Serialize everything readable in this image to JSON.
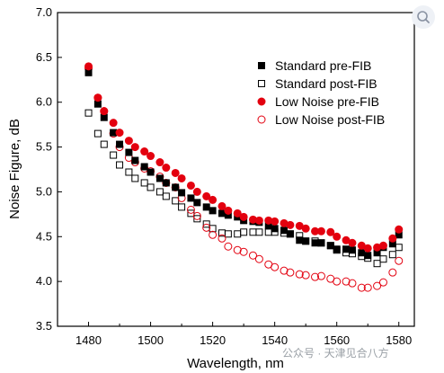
{
  "chart_data": {
    "type": "scatter",
    "xlabel": "Wavelength, nm",
    "ylabel": "Noise Figure, dB",
    "xlim": [
      1470,
      1585
    ],
    "ylim": [
      3.5,
      7.0
    ],
    "xticks": [
      1480,
      1500,
      1520,
      1540,
      1560,
      1580
    ],
    "yticks": [
      3.5,
      4.0,
      4.5,
      5.0,
      5.5,
      6.0,
      6.5,
      7.0
    ],
    "grid": false,
    "legend_position": "top-right",
    "x": [
      1480,
      1483,
      1485,
      1488,
      1490,
      1493,
      1495,
      1498,
      1500,
      1503,
      1505,
      1508,
      1510,
      1513,
      1515,
      1518,
      1520,
      1523,
      1525,
      1528,
      1530,
      1533,
      1535,
      1538,
      1540,
      1543,
      1545,
      1548,
      1550,
      1553,
      1555,
      1558,
      1560,
      1563,
      1565,
      1568,
      1570,
      1573,
      1575,
      1578,
      1580
    ],
    "series": [
      {
        "name": "Standard pre-FIB",
        "marker": "filled-square",
        "color": "#000000",
        "values": [
          6.33,
          5.98,
          5.83,
          5.66,
          5.53,
          5.44,
          5.35,
          5.28,
          5.22,
          5.15,
          5.1,
          5.05,
          4.99,
          4.93,
          4.88,
          4.83,
          4.79,
          4.76,
          4.74,
          4.72,
          4.68,
          4.67,
          4.66,
          4.62,
          4.59,
          4.57,
          4.53,
          4.46,
          4.45,
          4.43,
          4.43,
          4.4,
          4.36,
          4.36,
          4.35,
          4.32,
          4.29,
          4.32,
          4.38,
          4.42,
          4.52
        ]
      },
      {
        "name": "Standard post-FIB",
        "marker": "open-square",
        "color": "#000000",
        "values": [
          5.88,
          5.65,
          5.53,
          5.41,
          5.3,
          5.22,
          5.15,
          5.1,
          5.05,
          5.0,
          4.95,
          4.9,
          4.83,
          4.76,
          4.7,
          4.64,
          4.59,
          4.54,
          4.53,
          4.53,
          4.55,
          4.55,
          4.55,
          4.55,
          4.55,
          4.54,
          4.53,
          4.51,
          4.45,
          4.45,
          4.43,
          4.4,
          4.35,
          4.32,
          4.31,
          4.28,
          4.26,
          4.2,
          4.25,
          4.3,
          4.38
        ]
      },
      {
        "name": "Low Noise pre-FIB",
        "marker": "filled-circle",
        "color": "#e3000f",
        "values": [
          6.4,
          6.05,
          5.9,
          5.77,
          5.66,
          5.57,
          5.5,
          5.45,
          5.4,
          5.33,
          5.27,
          5.21,
          5.15,
          5.07,
          5.0,
          4.95,
          4.91,
          4.84,
          4.79,
          4.76,
          4.72,
          4.69,
          4.68,
          4.68,
          4.67,
          4.65,
          4.63,
          4.62,
          4.59,
          4.56,
          4.56,
          4.55,
          4.5,
          4.46,
          4.43,
          4.4,
          4.37,
          4.38,
          4.4,
          4.48,
          4.58
        ]
      },
      {
        "name": "Low Noise post-FIB",
        "marker": "open-circle",
        "color": "#e3000f",
        "values": [
          6.38,
          6.05,
          5.9,
          5.65,
          5.5,
          5.38,
          5.33,
          5.26,
          5.23,
          5.17,
          5.1,
          5.05,
          4.93,
          4.8,
          4.73,
          4.6,
          4.52,
          4.48,
          4.39,
          4.35,
          4.33,
          4.29,
          4.25,
          4.19,
          4.16,
          4.12,
          4.1,
          4.08,
          4.07,
          4.05,
          4.06,
          4.03,
          4.0,
          4.0,
          3.98,
          3.93,
          3.93,
          3.95,
          3.99,
          4.1,
          4.23
        ]
      }
    ]
  },
  "watermark": "公众号 · 天津见合八方"
}
